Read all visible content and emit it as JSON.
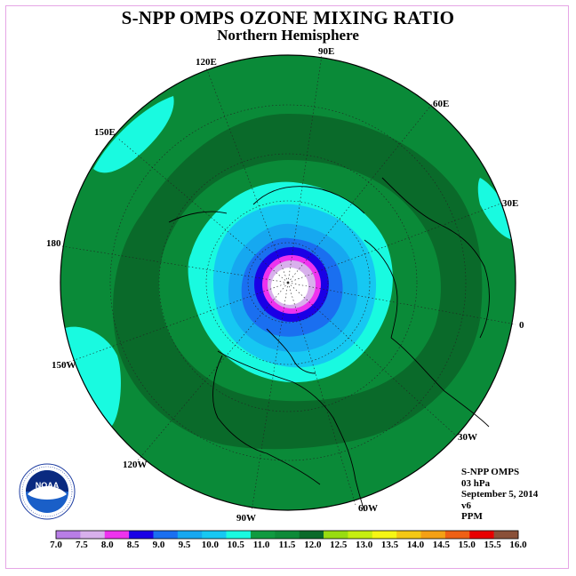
{
  "title": "S-NPP OMPS OZONE MIXING RATIO",
  "subtitle": "Northern Hemisphere",
  "longitude_labels": [
    "120E",
    "90E",
    "60E",
    "150E",
    "30E",
    "180",
    "0",
    "150W",
    "30W",
    "120W",
    "60W",
    "90W"
  ],
  "info": {
    "instrument": "S-NPP OMPS",
    "level": "03 hPa",
    "date": "September 5, 2014",
    "version": "v6",
    "units": "PPM"
  },
  "logo": {
    "name": "noaa-logo",
    "text": "NOAA"
  },
  "colorbar": {
    "labels": [
      "7.0",
      "7.5",
      "8.0",
      "8.5",
      "9.0",
      "9.5",
      "10.0",
      "10.5",
      "11.0",
      "11.5",
      "12.0",
      "12.5",
      "13.0",
      "13.5",
      "14.0",
      "14.5",
      "15.0",
      "15.5",
      "16.0"
    ],
    "colors": [
      "#b87ee6",
      "#d8b0ec",
      "#ee33ee",
      "#1a00e6",
      "#1a6ff0",
      "#16a8f0",
      "#16c8f2",
      "#19fae0",
      "#109a40",
      "#0e8a38",
      "#0a6a2a",
      "#98dc10",
      "#c6ee10",
      "#f6f614",
      "#f4c814",
      "#f4a014",
      "#ee6014",
      "#e80000",
      "#8a5038"
    ]
  },
  "colors": {
    "outer_band": "#0a8a38",
    "mid_band": "#0a6a2a",
    "cyan": "#19fae0",
    "light_blue": "#16c8f2",
    "blue": "#16a8f0",
    "deep_blue": "#1a00e6",
    "magenta": "#ee33ee",
    "lavender": "#d8b0ec"
  }
}
